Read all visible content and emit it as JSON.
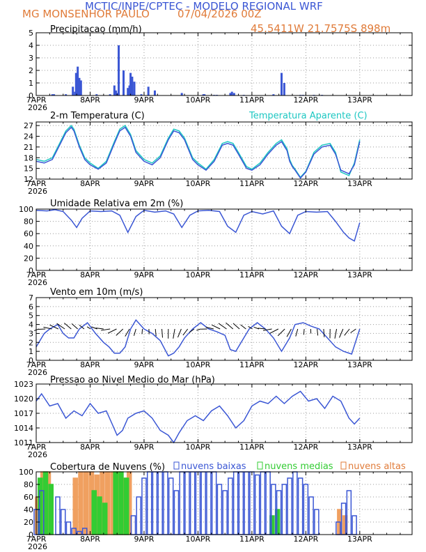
{
  "header": {
    "title": "MCTIC/INPE/CPTEC - MODELO REGIONAL WRF",
    "location": "MG MONSENHOR PAULO",
    "run_date": "07/04/2026 00Z",
    "coords": "45.5411W 21.7575S 898m"
  },
  "colors": {
    "blue": "#3a56d4",
    "cyan": "#1cc7c2",
    "orange": "#f0a060",
    "green": "#33cc33",
    "text_orange": "#e07b39",
    "vector": "#000000"
  },
  "x_axis": {
    "ticks": [
      "7APR",
      "8APR",
      "9APR",
      "10APR",
      "11APR",
      "12APR",
      "13APR"
    ],
    "year": "2026"
  },
  "chart_data": [
    {
      "type": "bar",
      "title": "Precipitacao (mm/h)",
      "ylim": [
        0,
        5
      ],
      "yticks": [
        0,
        1,
        2,
        3,
        4,
        5
      ],
      "x": [
        0.3,
        0.33,
        0.55,
        0.68,
        0.72,
        0.74,
        0.77,
        0.8,
        0.83,
        1.12,
        1.37,
        1.45,
        1.48,
        1.5,
        1.53,
        1.62,
        1.7,
        1.73,
        1.75,
        1.78,
        1.82,
        1.95,
        2.08,
        2.2,
        2.7,
        3.1,
        3.12,
        3.3,
        3.35,
        3.6,
        3.63,
        3.67,
        3.85,
        4.4,
        4.55,
        4.6,
        4.9,
        4.95,
        5.15,
        5.3
      ],
      "values": [
        0.1,
        0.1,
        0.1,
        0.7,
        0.3,
        1.8,
        2.3,
        1.4,
        1.2,
        0.1,
        0.1,
        0.8,
        0.4,
        0.2,
        4.0,
        2.0,
        0.6,
        0.8,
        1.8,
        1.5,
        1.1,
        0.1,
        0.7,
        0.4,
        0.2,
        0.1,
        0.1,
        0.05,
        0.05,
        0.2,
        0.3,
        0.2,
        0.05,
        0.1,
        1.8,
        1.0,
        0.05,
        0.05,
        0.05,
        0.05
      ]
    },
    {
      "type": "line",
      "title": "2-m Temperatura (C)",
      "ylim": [
        12,
        28
      ],
      "yticks": [
        12,
        15,
        18,
        21,
        24,
        27
      ],
      "series": [
        {
          "name": "",
          "x": [
            0,
            0.15,
            0.3,
            0.45,
            0.55,
            0.65,
            0.7,
            0.8,
            0.9,
            1.0,
            1.15,
            1.3,
            1.45,
            1.55,
            1.65,
            1.75,
            1.85,
            2.0,
            2.15,
            2.3,
            2.45,
            2.55,
            2.65,
            2.75,
            2.9,
            3.0,
            3.15,
            3.3,
            3.45,
            3.55,
            3.65,
            3.75,
            3.9,
            4.0,
            4.15,
            4.3,
            4.45,
            4.55,
            4.65,
            4.7,
            4.75,
            4.8,
            4.9,
            5.0,
            5.15,
            5.3,
            5.45,
            5.55,
            5.65,
            5.8,
            5.9,
            6.0
          ],
          "values": [
            17,
            16.5,
            17.5,
            22,
            25,
            26.5,
            25.5,
            21,
            17.5,
            16,
            14.8,
            16.5,
            22,
            25.5,
            26.5,
            24,
            19.5,
            17,
            16,
            18,
            23,
            25.5,
            25,
            23,
            17.5,
            16,
            14.5,
            17,
            21.5,
            22,
            21.5,
            19,
            15,
            14.5,
            16,
            19,
            21.5,
            22.5,
            20,
            17,
            15.5,
            14.5,
            12.3,
            14,
            19,
            21,
            21.5,
            19,
            14.5,
            13.5,
            16,
            22.5
          ]
        },
        {
          "name": "Temperatura Aparente (C)",
          "x": [
            0,
            0.15,
            0.3,
            0.45,
            0.55,
            0.65,
            0.7,
            0.8,
            0.9,
            1.0,
            1.15,
            1.3,
            1.45,
            1.55,
            1.65,
            1.75,
            1.85,
            2.0,
            2.15,
            2.3,
            2.45,
            2.55,
            2.65,
            2.75,
            2.9,
            3.0,
            3.15,
            3.3,
            3.45,
            3.55,
            3.65,
            3.75,
            3.9,
            4.0,
            4.15,
            4.3,
            4.45,
            4.55,
            4.65,
            4.7,
            4.75,
            4.8,
            4.9,
            5.0,
            5.15,
            5.3,
            5.45,
            5.55,
            5.65,
            5.8,
            5.9,
            6.0
          ],
          "values": [
            17.5,
            17,
            18,
            22.5,
            25.5,
            27,
            26,
            21.5,
            18,
            16.5,
            15,
            17,
            22.5,
            26,
            27,
            24.5,
            20,
            17.5,
            16.5,
            18.5,
            23.5,
            26,
            25.5,
            23.5,
            18,
            16.5,
            14.8,
            17.5,
            22,
            22.5,
            22,
            19.5,
            15.5,
            14.8,
            16.5,
            19.5,
            22,
            23,
            20.5,
            17.5,
            15.8,
            14.8,
            12.5,
            14.2,
            19.5,
            21.5,
            22,
            19.5,
            14,
            13,
            16.5,
            23
          ]
        }
      ]
    },
    {
      "type": "line",
      "title": "Umidade Relativa em 2m (%)",
      "ylim": [
        0,
        100
      ],
      "yticks": [
        0,
        20,
        40,
        60,
        80,
        100
      ],
      "series": [
        {
          "name": "",
          "x": [
            0,
            0.2,
            0.35,
            0.5,
            0.65,
            0.75,
            0.85,
            1.0,
            1.2,
            1.4,
            1.55,
            1.7,
            1.85,
            2.0,
            2.2,
            2.4,
            2.55,
            2.7,
            2.85,
            3.0,
            3.2,
            3.4,
            3.55,
            3.7,
            3.85,
            4.0,
            4.2,
            4.4,
            4.55,
            4.7,
            4.85,
            5.0,
            5.2,
            5.4,
            5.55,
            5.7,
            5.8,
            5.9,
            6.0
          ],
          "values": [
            98,
            97,
            99,
            96,
            82,
            70,
            85,
            97,
            96,
            97,
            90,
            62,
            88,
            98,
            95,
            97,
            92,
            70,
            90,
            97,
            98,
            96,
            72,
            62,
            90,
            96,
            92,
            97,
            72,
            60,
            90,
            96,
            95,
            96,
            80,
            62,
            53,
            48,
            78
          ]
        }
      ]
    },
    {
      "type": "line",
      "title": "Vento em 10m (m/s)",
      "ylim": [
        0,
        7
      ],
      "yticks": [
        0,
        1,
        2,
        3,
        4,
        5,
        6,
        7
      ],
      "series": [
        {
          "name": "",
          "x": [
            0,
            0.15,
            0.25,
            0.4,
            0.5,
            0.6,
            0.7,
            0.8,
            0.95,
            1.1,
            1.25,
            1.35,
            1.45,
            1.55,
            1.65,
            1.75,
            1.85,
            2.0,
            2.15,
            2.3,
            2.45,
            2.55,
            2.65,
            2.75,
            2.9,
            3.05,
            3.2,
            3.35,
            3.5,
            3.6,
            3.7,
            3.8,
            3.95,
            4.1,
            4.25,
            4.4,
            4.55,
            4.7,
            4.8,
            4.95,
            5.1,
            5.25,
            5.4,
            5.55,
            5.7,
            5.85,
            6.0
          ],
          "values": [
            1.5,
            3,
            3.5,
            4,
            3,
            2.5,
            2.5,
            3.5,
            4.2,
            3,
            2,
            1.5,
            0.8,
            0.8,
            1.5,
            3.5,
            4.5,
            3.5,
            3,
            2.2,
            0.5,
            0.8,
            1.5,
            2.5,
            3.5,
            4.2,
            3.5,
            3.2,
            2.8,
            1.2,
            1.0,
            2,
            3.5,
            4.2,
            3.5,
            2.5,
            1.0,
            2.5,
            4.0,
            4.2,
            3.8,
            3.5,
            2.5,
            1.5,
            1.0,
            0.7,
            3.5
          ]
        }
      ]
    },
    {
      "type": "line",
      "title": "Pressao ao Nivel Medio do Mar (hPa)",
      "ylim": [
        1011,
        1023
      ],
      "yticks": [
        1011,
        1014,
        1017,
        1020,
        1023
      ],
      "series": [
        {
          "name": "",
          "x": [
            0,
            0.1,
            0.25,
            0.4,
            0.55,
            0.7,
            0.85,
            1.0,
            1.15,
            1.3,
            1.4,
            1.5,
            1.6,
            1.7,
            1.85,
            2.0,
            2.15,
            2.3,
            2.45,
            2.55,
            2.65,
            2.8,
            2.95,
            3.1,
            3.25,
            3.4,
            3.55,
            3.7,
            3.85,
            4.0,
            4.15,
            4.3,
            4.45,
            4.6,
            4.75,
            4.9,
            5.05,
            5.2,
            5.35,
            5.5,
            5.65,
            5.8,
            5.9,
            6.0
          ],
          "values": [
            1019.5,
            1021,
            1018.5,
            1019,
            1016,
            1017.5,
            1016.5,
            1019,
            1017,
            1017.5,
            1015,
            1012.5,
            1013.5,
            1016,
            1017,
            1017.5,
            1016,
            1013.5,
            1012.5,
            1011,
            1013,
            1015.5,
            1016.5,
            1015.5,
            1017.5,
            1018.5,
            1016.5,
            1014,
            1015.5,
            1018.5,
            1019.5,
            1019,
            1020.5,
            1019,
            1020.5,
            1021.5,
            1019.5,
            1020,
            1018,
            1020.5,
            1019.5,
            1016,
            1014.8,
            1016
          ]
        }
      ]
    },
    {
      "type": "bar",
      "title": "Cobertura de Nuvens (%)",
      "ylim": [
        0,
        100
      ],
      "yticks": [
        0,
        20,
        40,
        60,
        80,
        100
      ],
      "series_labels": [
        "nuvens baixas",
        "nuvens medias",
        "nuvens altas"
      ],
      "series": [
        {
          "name": "nuvens baixas",
          "x": [
            0.0,
            0.1,
            0.4,
            0.5,
            0.6,
            0.7,
            0.8,
            0.9,
            1.8,
            1.9,
            2.0,
            2.1,
            2.2,
            2.3,
            2.4,
            2.5,
            2.6,
            2.7,
            2.8,
            2.9,
            3.0,
            3.1,
            3.2,
            3.3,
            3.4,
            3.5,
            3.6,
            3.7,
            3.8,
            3.9,
            4.0,
            4.1,
            4.2,
            4.3,
            4.4,
            4.5,
            4.6,
            4.7,
            4.8,
            4.9,
            5.0,
            5.1,
            5.2,
            5.6,
            5.7,
            5.8,
            5.9
          ],
          "values": [
            40,
            70,
            60,
            40,
            20,
            10,
            5,
            10,
            30,
            60,
            90,
            100,
            100,
            100,
            100,
            90,
            70,
            100,
            100,
            100,
            100,
            100,
            100,
            100,
            80,
            70,
            90,
            100,
            100,
            100,
            100,
            95,
            100,
            100,
            80,
            70,
            80,
            90,
            100,
            90,
            80,
            60,
            40,
            20,
            50,
            70,
            30
          ]
        },
        {
          "name": "nuvens medias",
          "x": [
            0.1,
            0.2,
            0.3,
            1.1,
            1.2,
            1.3,
            1.5,
            1.6,
            1.7,
            4.4,
            4.5
          ],
          "values": [
            90,
            100,
            80,
            70,
            60,
            50,
            100,
            100,
            90,
            30,
            40
          ]
        },
        {
          "name": "nuvens altas",
          "x": [
            0.0,
            0.1,
            0.2,
            0.7,
            0.8,
            0.9,
            1.0,
            1.1,
            1.2,
            1.3,
            1.4,
            1.5,
            1.6,
            1.7,
            5.6,
            5.7
          ],
          "values": [
            60,
            100,
            100,
            90,
            100,
            100,
            100,
            95,
            100,
            100,
            100,
            100,
            90,
            100,
            40,
            30
          ]
        }
      ]
    }
  ]
}
